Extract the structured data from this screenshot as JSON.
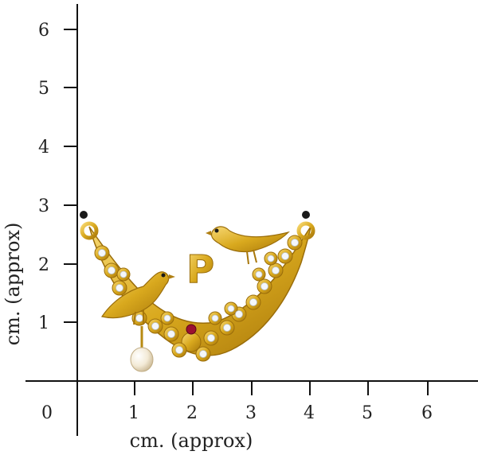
{
  "ruler": {
    "x_title": "cm. (approx)",
    "y_title": "cm. (approx)",
    "origin_label": "0",
    "x_ticks": [
      "1",
      "2",
      "3",
      "4",
      "5",
      "6"
    ],
    "y_ticks": [
      "1",
      "2",
      "3",
      "4",
      "5",
      "6"
    ]
  },
  "product": {
    "initial_letter": "P",
    "metal_color": "#d9a91e",
    "stone_color": "#f4f7fb",
    "ruby_color": "#9b1030",
    "pearl_color": "#f3ead6",
    "bead_color": "#1a1a1a"
  }
}
